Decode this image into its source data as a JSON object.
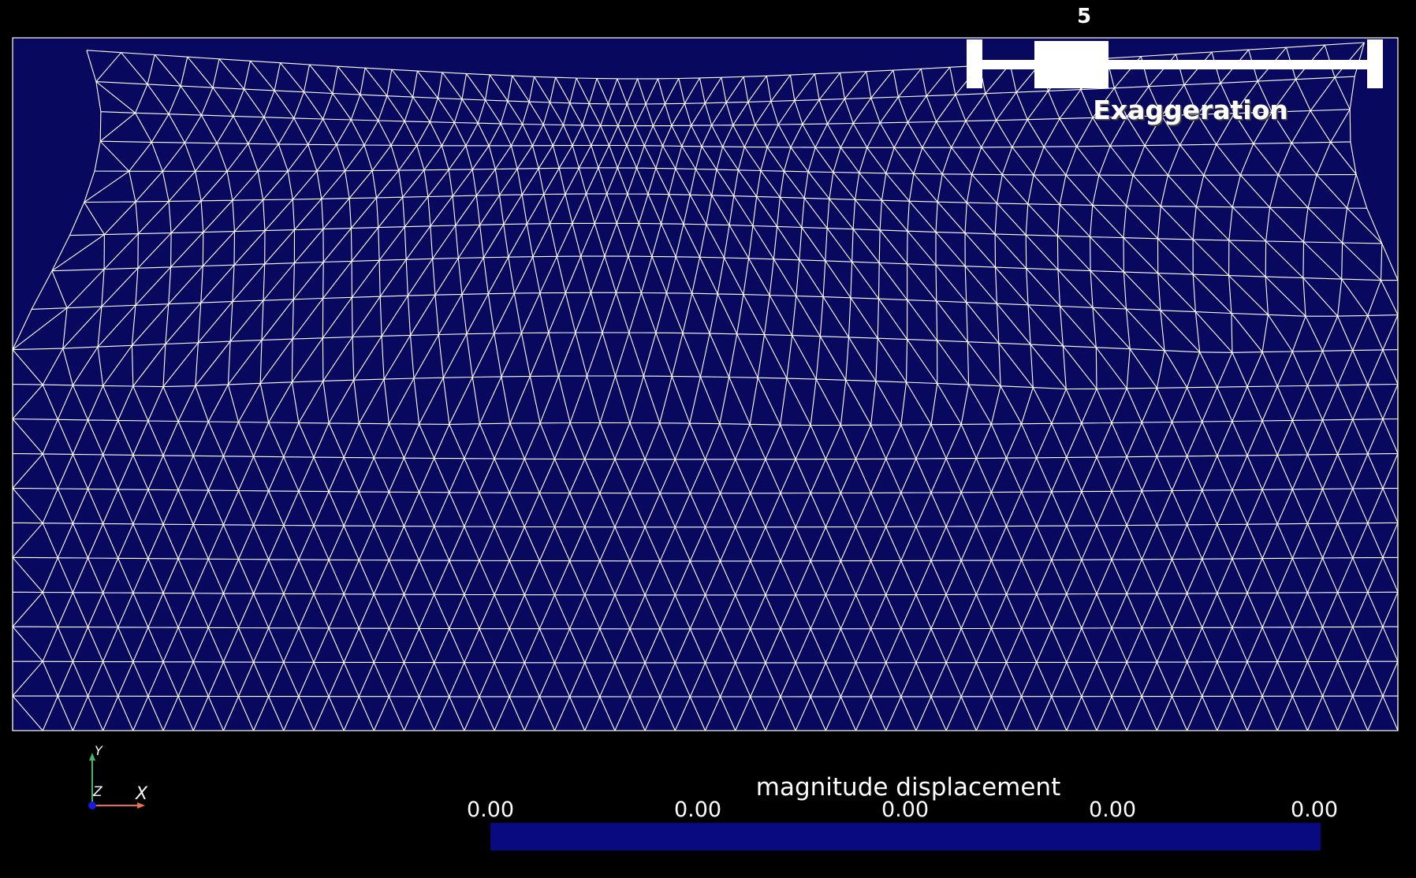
{
  "viewport": {
    "background_color": "#000000",
    "mesh_fill_color": "#08085e",
    "mesh_line_color": "#ffffff",
    "mesh_type": "triangular"
  },
  "exaggeration_slider": {
    "title": "Exaggeration",
    "value": "5",
    "value_fraction": 0.24
  },
  "orientation_axes": {
    "x_label": "X",
    "y_label": "Y",
    "z_label": "Z",
    "x_color": "#e8714a",
    "y_color": "#47b36a",
    "z_color": "#1a1ae0"
  },
  "scalar_bar": {
    "title": "magnitude displacement",
    "ticks": [
      "0.00",
      "0.00",
      "0.00",
      "0.00",
      "0.00"
    ],
    "bar_color": "#0a0a80"
  }
}
